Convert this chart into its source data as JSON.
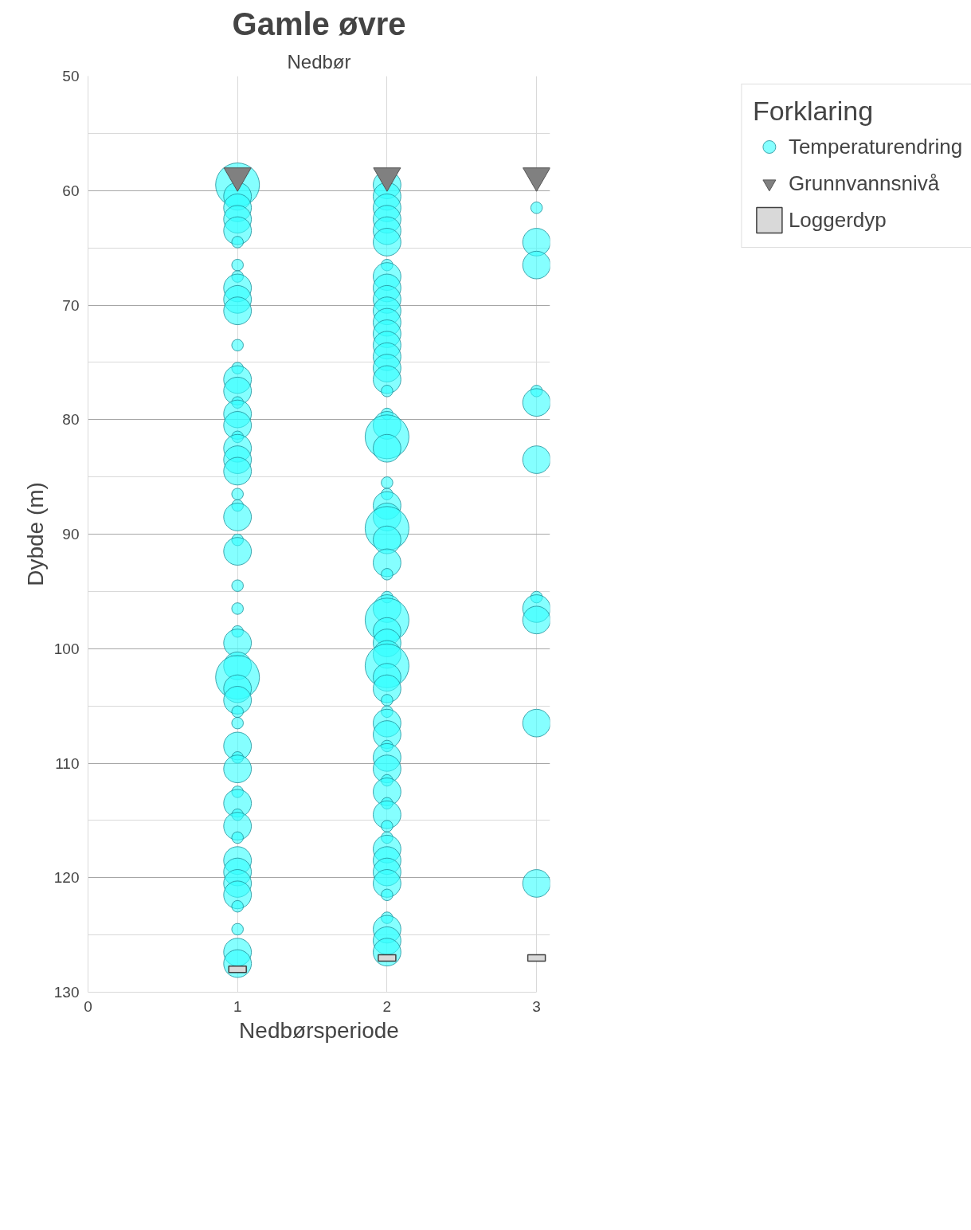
{
  "chart_data": {
    "type": "bubble",
    "title": "Gamle øvre",
    "subtitle": "Nedbør",
    "xlabel": "Nedbørsperiode",
    "ylabel": "Dybde (m)",
    "legend_title": "Forklaring",
    "xlim": [
      0,
      3
    ],
    "xticks": [
      0,
      1,
      2,
      3
    ],
    "ylim": [
      130,
      50
    ],
    "yticks": [
      50,
      60,
      70,
      80,
      90,
      100,
      110,
      120,
      130
    ],
    "grid": true,
    "legend": "top right",
    "series": [
      {
        "name": "Temperaturendring",
        "marker": "circle",
        "color": "#33ffff",
        "x": [
          1,
          1,
          1,
          1,
          1,
          1,
          1,
          1,
          1,
          1,
          1,
          1,
          1,
          1,
          1,
          1,
          1,
          1,
          1,
          1,
          1,
          1,
          1,
          1,
          1,
          1,
          1,
          1,
          1,
          1,
          1,
          1,
          1,
          1,
          1,
          1,
          1,
          1,
          1,
          1,
          1,
          1,
          1,
          1,
          1,
          1,
          1,
          1,
          1,
          1,
          1,
          1,
          1,
          2,
          2,
          2,
          2,
          2,
          2,
          2,
          2,
          2,
          2,
          2,
          2,
          2,
          2,
          2,
          2,
          2,
          2,
          2,
          2,
          2,
          2,
          2,
          2,
          2,
          2,
          2,
          2,
          2,
          2,
          2,
          2,
          2,
          2,
          2,
          2,
          2,
          2,
          2,
          2,
          2,
          2,
          2,
          2,
          2,
          2,
          2,
          2,
          2,
          2,
          2,
          2,
          2,
          2,
          2,
          2,
          2,
          2,
          2,
          2,
          2,
          3,
          3,
          3,
          3,
          3,
          3,
          3,
          3,
          3,
          3,
          3
        ],
        "values": [
          59.5,
          60.5,
          61.5,
          62.5,
          63.5,
          64.5,
          66.5,
          67.5,
          68.5,
          69.5,
          70.5,
          73.5,
          75.5,
          76.5,
          77.5,
          78.5,
          79.5,
          80.5,
          81.5,
          82.5,
          83.5,
          84.5,
          86.5,
          87.5,
          88.5,
          90.5,
          91.5,
          94.5,
          96.5,
          98.5,
          99.5,
          101.5,
          102.5,
          103.5,
          104.5,
          105.5,
          106.5,
          108.5,
          109.5,
          110.5,
          112.5,
          113.5,
          114.5,
          115.5,
          116.5,
          118.5,
          119.5,
          120.5,
          121.5,
          122.5,
          124.5,
          126.5,
          127.5,
          59.5,
          60.5,
          61.5,
          62.5,
          63.5,
          64.5,
          66.5,
          67.5,
          68.5,
          69.5,
          70.5,
          71.5,
          72.5,
          73.5,
          74.5,
          75.5,
          76.5,
          77.5,
          79.5,
          80.5,
          81.5,
          82.5,
          85.5,
          86.5,
          87.5,
          88.5,
          89.5,
          90.5,
          92.5,
          93.5,
          95.5,
          96.5,
          97.5,
          98.5,
          99.5,
          100.5,
          101.5,
          102.5,
          103.5,
          104.5,
          105.5,
          106.5,
          107.5,
          108.5,
          109.5,
          110.5,
          111.5,
          112.5,
          113.5,
          114.5,
          115.5,
          116.5,
          117.5,
          118.5,
          119.5,
          120.5,
          121.5,
          123.5,
          124.5,
          125.5,
          126.5,
          61.5,
          64.5,
          66.5,
          77.5,
          78.5,
          83.5,
          95.5,
          96.5,
          97.5,
          106.5,
          120.5
        ],
        "sizes": [
          1,
          0.4,
          0.4,
          0.4,
          0.4,
          0.07,
          0.07,
          0.07,
          0.4,
          0.4,
          0.4,
          0.07,
          0.07,
          0.4,
          0.4,
          0.07,
          0.4,
          0.4,
          0.07,
          0.4,
          0.4,
          0.4,
          0.07,
          0.07,
          0.4,
          0.07,
          0.4,
          0.07,
          0.07,
          0.07,
          0.4,
          0.4,
          1,
          0.4,
          0.4,
          0.07,
          0.07,
          0.4,
          0.07,
          0.4,
          0.07,
          0.4,
          0.07,
          0.4,
          0.07,
          0.4,
          0.4,
          0.4,
          0.4,
          0.07,
          0.07,
          0.4,
          0.4,
          0.4,
          0.4,
          0.4,
          0.4,
          0.4,
          0.4,
          0.07,
          0.4,
          0.4,
          0.4,
          0.4,
          0.4,
          0.4,
          0.4,
          0.4,
          0.4,
          0.4,
          0.07,
          0.07,
          0.4,
          1,
          0.4,
          0.07,
          0.07,
          0.4,
          0.4,
          1,
          0.4,
          0.4,
          0.07,
          0.07,
          0.4,
          1,
          0.4,
          0.4,
          0.4,
          1,
          0.4,
          0.4,
          0.07,
          0.07,
          0.4,
          0.4,
          0.07,
          0.4,
          0.4,
          0.07,
          0.4,
          0.07,
          0.4,
          0.07,
          0.07,
          0.4,
          0.4,
          0.4,
          0.4,
          0.07,
          0.07,
          0.4,
          0.4,
          0.4,
          0.07,
          0.4,
          0.4,
          0.07,
          0.4,
          0.4,
          0.07,
          0.4,
          0.4,
          0.4,
          0.4
        ]
      },
      {
        "name": "Grunnvannsnivå",
        "type": "scatter",
        "marker": "triangle",
        "color": "#808080",
        "x": [
          1,
          2,
          3
        ],
        "values": [
          58.7,
          58.7,
          58.7
        ]
      },
      {
        "name": "Loggerdyp",
        "type": "scatter",
        "marker": "square",
        "color": "#d9d9d9",
        "x": [
          1,
          2,
          3
        ],
        "values": [
          128,
          127,
          127
        ]
      }
    ]
  }
}
